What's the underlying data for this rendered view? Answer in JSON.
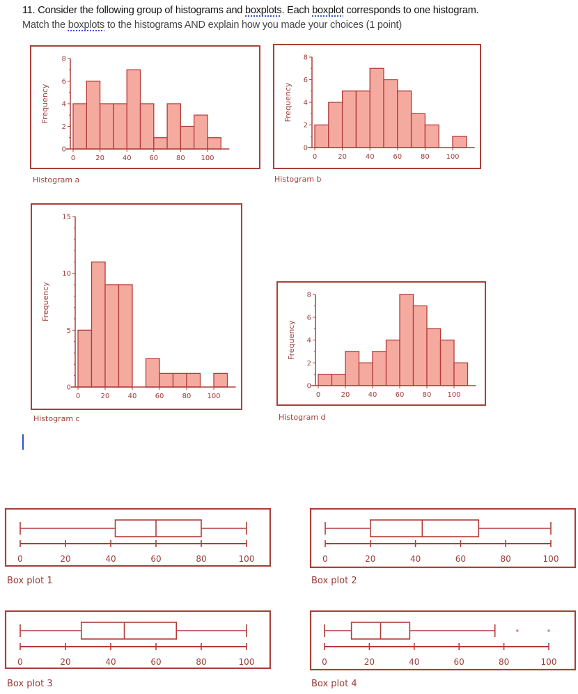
{
  "question": {
    "line1": [
      "11. Consider the following group of histograms and ",
      "boxplots",
      ". Each ",
      "boxplot",
      " corresponds to one histogram."
    ],
    "line2": [
      "Match the ",
      "boxplots",
      " to the histograms AND explain how you made your choices (1 point)"
    ]
  },
  "colors": {
    "frame": "#a8403a",
    "bar_fill": "#f5aaa0",
    "bar_stroke": "#b23c38",
    "text": "#9a3b36",
    "cursor": "#2a4fd0"
  },
  "chart_data": [
    {
      "id": "a",
      "type": "bar",
      "title": "Histogram a",
      "ylabel": "Frequency",
      "bin_width": 10,
      "bins_start": [
        0,
        10,
        20,
        30,
        40,
        50,
        60,
        70,
        80,
        90,
        100
      ],
      "values": [
        4,
        6,
        4,
        4,
        7,
        4,
        1,
        4,
        2,
        3,
        1
      ],
      "xlim": [
        0,
        110
      ],
      "ylim": [
        0,
        8
      ],
      "xticks": [
        "0",
        "20",
        "40",
        "60",
        "80",
        "100"
      ],
      "yticks": [
        "0",
        "2",
        "4",
        "6",
        "8"
      ]
    },
    {
      "id": "b",
      "type": "bar",
      "title": "Histogram b",
      "ylabel": "Frequency",
      "bin_width": 10,
      "bins_start": [
        0,
        10,
        20,
        30,
        40,
        50,
        60,
        70,
        80,
        90,
        100
      ],
      "values": [
        2,
        4,
        5,
        5,
        7,
        6,
        5,
        3,
        2,
        0,
        1
      ],
      "xlim": [
        0,
        110
      ],
      "ylim": [
        0,
        8
      ],
      "xticks": [
        "0",
        "20",
        "40",
        "60",
        "80",
        "100"
      ],
      "yticks": [
        "0",
        "2",
        "4",
        "6",
        "8"
      ]
    },
    {
      "id": "c",
      "type": "bar",
      "title": "Histogram c",
      "ylabel": "Frequency",
      "bin_width": 10,
      "bins_start": [
        0,
        10,
        20,
        30,
        40,
        50,
        60,
        70,
        80,
        90,
        100
      ],
      "values": [
        5,
        11,
        9,
        9,
        0,
        2.5,
        1.2,
        1.2,
        1.2,
        0,
        1.2
      ],
      "xlim": [
        0,
        110
      ],
      "ylim": [
        0,
        15
      ],
      "xticks": [
        "0",
        "20",
        "40",
        "60",
        "80",
        "100"
      ],
      "yticks": [
        "0",
        "5",
        "10",
        "15"
      ]
    },
    {
      "id": "d",
      "type": "bar",
      "title": "Histogram d",
      "ylabel": "Frequency",
      "bin_width": 10,
      "bins_start": [
        0,
        10,
        20,
        30,
        40,
        50,
        60,
        70,
        80,
        90,
        100
      ],
      "values": [
        1,
        1,
        3,
        2,
        3,
        4,
        8,
        7,
        5,
        4,
        2
      ],
      "xlim": [
        0,
        110
      ],
      "ylim": [
        0,
        8
      ],
      "xticks": [
        "0",
        "20",
        "40",
        "60",
        "80",
        "100"
      ],
      "yticks": [
        "0",
        "2",
        "4",
        "6",
        "8"
      ]
    },
    {
      "id": "bp1",
      "type": "boxplot",
      "title": "Box plot 1",
      "min": 0,
      "q1": 42,
      "median": 60,
      "q3": 80,
      "max": 100,
      "outliers": [],
      "xlim": [
        0,
        100
      ],
      "xticks": [
        "0",
        "20",
        "40",
        "60",
        "80",
        "100"
      ]
    },
    {
      "id": "bp2",
      "type": "boxplot",
      "title": "Box plot 2",
      "min": 0,
      "q1": 20,
      "median": 43,
      "q3": 68,
      "max": 100,
      "outliers": [],
      "xlim": [
        0,
        100
      ],
      "xticks": [
        "0",
        "20",
        "40",
        "60",
        "80",
        "100"
      ]
    },
    {
      "id": "bp3",
      "type": "boxplot",
      "title": "Box plot 3",
      "min": 0,
      "q1": 27,
      "median": 46,
      "q3": 69,
      "max": 100,
      "outliers": [],
      "xlim": [
        0,
        100
      ],
      "xticks": [
        "0",
        "20",
        "40",
        "60",
        "80",
        "100"
      ]
    },
    {
      "id": "bp4",
      "type": "boxplot",
      "title": "Box plot 4",
      "min": 0,
      "q1": 12,
      "median": 25,
      "q3": 38,
      "max": 76,
      "outliers": [
        86,
        100
      ],
      "xlim": [
        0,
        100
      ],
      "xticks": [
        "0",
        "20",
        "40",
        "60",
        "80",
        "100"
      ]
    }
  ]
}
